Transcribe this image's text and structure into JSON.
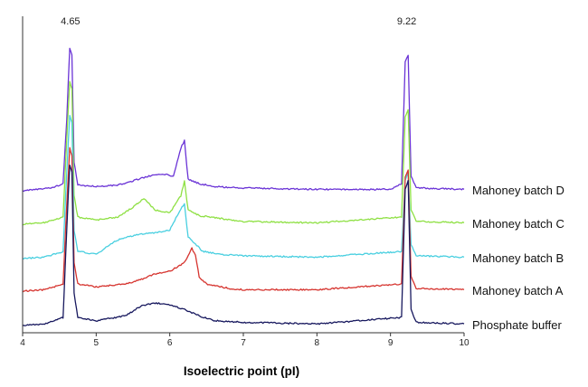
{
  "chart_data": {
    "type": "line",
    "xlabel": "Isoelectric point (pI)",
    "ylabel": "",
    "xlim": [
      4,
      10
    ],
    "xticks": [
      "4",
      "5",
      "6",
      "7",
      "8",
      "9",
      "10"
    ],
    "grid": false,
    "legend": "right-inline",
    "annotations": [
      {
        "text": "4.65",
        "x": 4.65
      },
      {
        "text": "9.22",
        "x": 9.22
      }
    ],
    "series": [
      {
        "name": "Mahoney batch D",
        "color": "#6a33d6",
        "points": [
          [
            4.0,
            0
          ],
          [
            4.2,
            0.01
          ],
          [
            4.4,
            0.02
          ],
          [
            4.55,
            0.05
          ],
          [
            4.6,
            0.5
          ],
          [
            4.64,
            1.0
          ],
          [
            4.67,
            0.95
          ],
          [
            4.7,
            0.2
          ],
          [
            4.75,
            0.04
          ],
          [
            5.0,
            0.03
          ],
          [
            5.3,
            0.04
          ],
          [
            5.5,
            0.07
          ],
          [
            5.7,
            0.1
          ],
          [
            5.9,
            0.12
          ],
          [
            6.05,
            0.1
          ],
          [
            6.15,
            0.3
          ],
          [
            6.2,
            0.35
          ],
          [
            6.25,
            0.08
          ],
          [
            6.4,
            0.05
          ],
          [
            6.6,
            0.03
          ],
          [
            7.0,
            0.02
          ],
          [
            8.0,
            0.01
          ],
          [
            9.0,
            0.01
          ],
          [
            9.15,
            0.05
          ],
          [
            9.2,
            0.9
          ],
          [
            9.24,
            0.95
          ],
          [
            9.28,
            0.1
          ],
          [
            9.35,
            0.02
          ],
          [
            10.0,
            0.01
          ]
        ]
      },
      {
        "name": "Mahoney batch C",
        "color": "#8ee043",
        "points": [
          [
            4.0,
            0
          ],
          [
            4.3,
            0.01
          ],
          [
            4.55,
            0.05
          ],
          [
            4.6,
            0.6
          ],
          [
            4.64,
            1.0
          ],
          [
            4.67,
            0.95
          ],
          [
            4.7,
            0.2
          ],
          [
            4.75,
            0.05
          ],
          [
            5.0,
            0.03
          ],
          [
            5.3,
            0.05
          ],
          [
            5.5,
            0.12
          ],
          [
            5.65,
            0.18
          ],
          [
            5.8,
            0.1
          ],
          [
            6.0,
            0.08
          ],
          [
            6.15,
            0.2
          ],
          [
            6.2,
            0.3
          ],
          [
            6.25,
            0.1
          ],
          [
            6.4,
            0.06
          ],
          [
            6.7,
            0.04
          ],
          [
            7.0,
            0.02
          ],
          [
            8.0,
            0.01
          ],
          [
            9.15,
            0.05
          ],
          [
            9.2,
            0.75
          ],
          [
            9.24,
            0.8
          ],
          [
            9.28,
            0.1
          ],
          [
            9.35,
            0.02
          ],
          [
            10.0,
            0.01
          ]
        ]
      },
      {
        "name": "Mahoney batch B",
        "color": "#48cfe0",
        "points": [
          [
            4.0,
            0
          ],
          [
            4.3,
            0.01
          ],
          [
            4.55,
            0.05
          ],
          [
            4.6,
            0.6
          ],
          [
            4.64,
            1.0
          ],
          [
            4.67,
            0.95
          ],
          [
            4.7,
            0.2
          ],
          [
            4.75,
            0.05
          ],
          [
            5.0,
            0.03
          ],
          [
            5.25,
            0.12
          ],
          [
            5.4,
            0.15
          ],
          [
            5.6,
            0.17
          ],
          [
            5.8,
            0.18
          ],
          [
            6.0,
            0.2
          ],
          [
            6.15,
            0.35
          ],
          [
            6.2,
            0.38
          ],
          [
            6.25,
            0.15
          ],
          [
            6.35,
            0.1
          ],
          [
            6.45,
            0.05
          ],
          [
            6.7,
            0.03
          ],
          [
            7.0,
            0.02
          ],
          [
            8.0,
            0.01
          ],
          [
            9.15,
            0.05
          ],
          [
            9.2,
            0.55
          ],
          [
            9.24,
            0.6
          ],
          [
            9.28,
            0.1
          ],
          [
            9.35,
            0.02
          ],
          [
            10.0,
            0.01
          ]
        ]
      },
      {
        "name": "Mahoney batch A",
        "color": "#d6342f",
        "points": [
          [
            4.0,
            0
          ],
          [
            4.3,
            0.01
          ],
          [
            4.55,
            0.05
          ],
          [
            4.6,
            0.6
          ],
          [
            4.64,
            1.0
          ],
          [
            4.67,
            0.95
          ],
          [
            4.7,
            0.2
          ],
          [
            4.75,
            0.05
          ],
          [
            5.0,
            0.03
          ],
          [
            5.4,
            0.05
          ],
          [
            5.6,
            0.08
          ],
          [
            5.8,
            0.12
          ],
          [
            6.0,
            0.14
          ],
          [
            6.2,
            0.2
          ],
          [
            6.3,
            0.3
          ],
          [
            6.35,
            0.25
          ],
          [
            6.4,
            0.1
          ],
          [
            6.5,
            0.05
          ],
          [
            6.8,
            0.02
          ],
          [
            7.0,
            0.01
          ],
          [
            8.0,
            0.01
          ],
          [
            9.15,
            0.05
          ],
          [
            9.2,
            0.8
          ],
          [
            9.24,
            0.85
          ],
          [
            9.28,
            0.1
          ],
          [
            9.35,
            0.02
          ],
          [
            10.0,
            0.01
          ]
        ]
      },
      {
        "name": "Phosphate buffer",
        "color": "#17185e",
        "points": [
          [
            4.0,
            0
          ],
          [
            4.3,
            0.01
          ],
          [
            4.55,
            0.05
          ],
          [
            4.6,
            0.6
          ],
          [
            4.64,
            1.0
          ],
          [
            4.67,
            0.95
          ],
          [
            4.7,
            0.2
          ],
          [
            4.75,
            0.05
          ],
          [
            5.0,
            0.03
          ],
          [
            5.4,
            0.06
          ],
          [
            5.6,
            0.12
          ],
          [
            5.8,
            0.14
          ],
          [
            6.0,
            0.13
          ],
          [
            6.2,
            0.1
          ],
          [
            6.4,
            0.06
          ],
          [
            6.6,
            0.03
          ],
          [
            7.0,
            0.02
          ],
          [
            8.0,
            0.01
          ],
          [
            9.15,
            0.05
          ],
          [
            9.2,
            0.85
          ],
          [
            9.24,
            0.9
          ],
          [
            9.28,
            0.1
          ],
          [
            9.35,
            0.02
          ],
          [
            10.0,
            0.01
          ]
        ]
      }
    ]
  }
}
